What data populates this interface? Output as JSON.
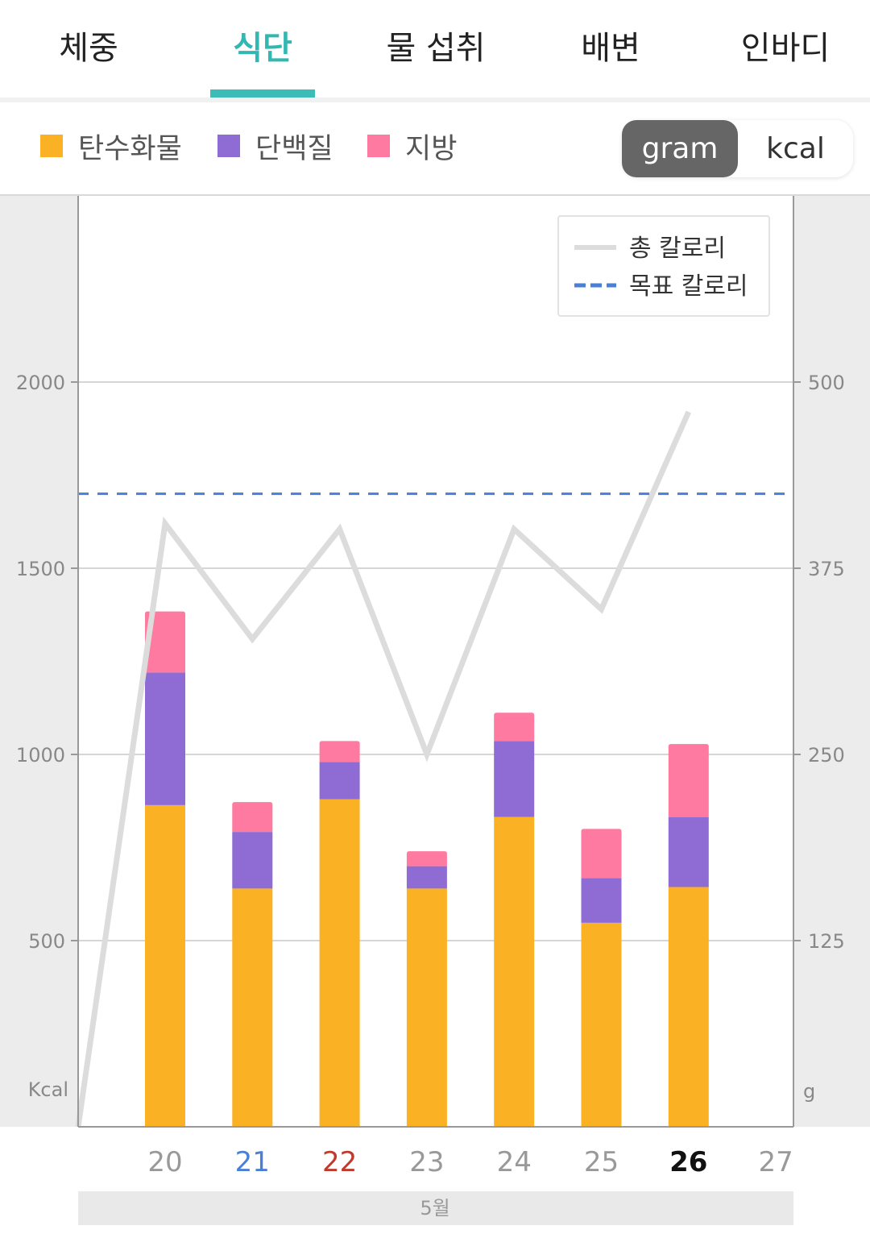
{
  "tabs": [
    {
      "label": "체중",
      "active": false
    },
    {
      "label": "식단",
      "active": true
    },
    {
      "label": "물 섭취",
      "active": false
    },
    {
      "label": "배변",
      "active": false
    },
    {
      "label": "인바디",
      "active": false
    }
  ],
  "colors": {
    "accent": "#3cbcb7",
    "carb": "#fbb124",
    "protein": "#8e6cd4",
    "fat": "#ff7aa0",
    "total_line": "#dcdcdc",
    "target_line": "#4a7fd6",
    "day_blue": "#4a7fd6",
    "day_red": "#c0392b"
  },
  "nutrient_legend": [
    {
      "label": "탄수화물",
      "color": "#fbb124"
    },
    {
      "label": "단백질",
      "color": "#8e6cd4"
    },
    {
      "label": "지방",
      "color": "#ff7aa0"
    }
  ],
  "unit_toggle": {
    "options": [
      "gram",
      "kcal"
    ],
    "selected": "gram"
  },
  "chart_data": {
    "type": "bar",
    "stacked": true,
    "categories": [
      "20",
      "21",
      "22",
      "23",
      "24",
      "25",
      "26",
      "27"
    ],
    "category_style": [
      "normal",
      "blue",
      "red",
      "normal",
      "normal",
      "normal",
      "bold",
      "normal"
    ],
    "x_group_label": "5월",
    "y_left": {
      "label": "Kcal",
      "ticks": [
        500,
        1000,
        1500,
        2000
      ],
      "ylim": [
        0,
        2500
      ]
    },
    "y_right": {
      "label": "g",
      "ticks": [
        125,
        250,
        375,
        500
      ],
      "ylim": [
        0,
        625
      ]
    },
    "series": [
      {
        "name": "탄수화물",
        "axis": "right",
        "values": [
          216,
          160,
          220,
          160,
          208,
          137,
          161,
          null
        ]
      },
      {
        "name": "단백질",
        "axis": "right",
        "values": [
          89,
          38,
          25,
          15,
          51,
          30,
          47,
          null
        ]
      },
      {
        "name": "지방",
        "axis": "right",
        "values": [
          41,
          20,
          14,
          10,
          19,
          33,
          49,
          null
        ]
      }
    ],
    "lines": [
      {
        "name": "총 칼로리",
        "axis": "left",
        "style": "solid",
        "x": [
          "19",
          "20",
          "21",
          "22",
          "23",
          "24",
          "25",
          "26"
        ],
        "values": [
          0,
          1620,
          1310,
          1605,
          1000,
          1605,
          1390,
          1920
        ]
      },
      {
        "name": "목표 칼로리",
        "axis": "left",
        "style": "dashed",
        "value": 1700
      }
    ],
    "legend": {
      "placement": "top-right",
      "entries": [
        "총 칼로리",
        "목표 칼로리"
      ]
    },
    "grid": true
  }
}
